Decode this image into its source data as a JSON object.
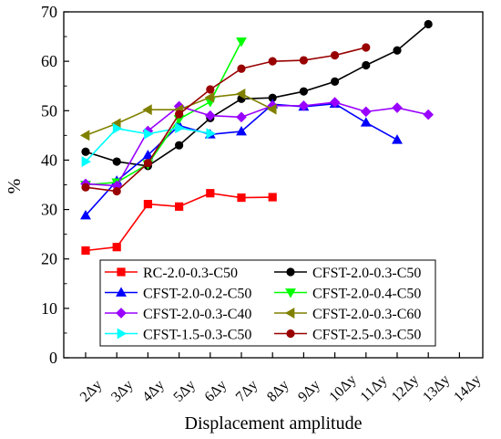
{
  "chart_data": {
    "type": "line",
    "title": "",
    "xlabel": "Displacement amplitude",
    "ylabel": "%",
    "categories": [
      "2Δy",
      "3Δy",
      "4Δy",
      "5Δy",
      "6Δy",
      "7Δy",
      "8Δy",
      "9Δy",
      "10Δy",
      "11Δy",
      "12Δy",
      "13Δy",
      "14Δy"
    ],
    "yticks": [
      "0",
      "10",
      "20",
      "30",
      "40",
      "50",
      "60",
      "70"
    ],
    "ylim": [
      0,
      70
    ],
    "grid": false,
    "legend": "bottom-center",
    "series": [
      {
        "name": "RC-2.0-0.3-C50",
        "color": "#ff0000",
        "marker": "square",
        "values": [
          21.7,
          22.4,
          31.1,
          30.6,
          33.3,
          32.4,
          32.5,
          null,
          null,
          null,
          null,
          null,
          null
        ]
      },
      {
        "name": "CFST-2.0-0.3-C50",
        "color": "#000000",
        "marker": "circle",
        "values": [
          41.7,
          39.7,
          38.8,
          43.0,
          48.5,
          52.4,
          52.6,
          53.9,
          55.9,
          59.2,
          62.2,
          67.5,
          null
        ]
      },
      {
        "name": "CFST-2.0-0.2-C50",
        "color": "#0000ff",
        "marker": "triangle-up",
        "values": [
          28.8,
          35.8,
          41.0,
          47.0,
          45.2,
          45.8,
          51.3,
          50.8,
          51.4,
          47.6,
          44.1,
          null,
          null
        ]
      },
      {
        "name": "CFST-2.0-0.4-C50",
        "color": "#00ff00",
        "marker": "triangle-down",
        "values": [
          35.0,
          35.5,
          39.2,
          48.3,
          51.8,
          64.0,
          null,
          null,
          null,
          null,
          null,
          null,
          null
        ]
      },
      {
        "name": "CFST-2.0-0.3-C40",
        "color": "#9900ff",
        "marker": "diamond",
        "values": [
          35.2,
          34.8,
          45.9,
          50.9,
          49.0,
          48.7,
          51.0,
          51.0,
          51.7,
          49.8,
          50.6,
          49.2,
          null
        ]
      },
      {
        "name": "CFST-2.0-0.3-C60",
        "color": "#808000",
        "marker": "triangle-left",
        "values": [
          45.0,
          47.4,
          50.2,
          50.2,
          52.7,
          53.4,
          50.3,
          null,
          null,
          null,
          null,
          null,
          null
        ]
      },
      {
        "name": "CFST-1.5-0.3-C50",
        "color": "#00ffff",
        "marker": "triangle-right",
        "values": [
          39.7,
          46.4,
          45.3,
          46.5,
          45.4,
          null,
          null,
          null,
          null,
          null,
          null,
          null,
          null
        ]
      },
      {
        "name": "CFST-2.5-0.3-C50",
        "color": "#990000",
        "marker": "circle",
        "values": [
          34.5,
          33.7,
          39.4,
          49.3,
          54.3,
          58.5,
          60.0,
          60.2,
          61.2,
          62.8,
          null,
          null,
          null
        ]
      }
    ]
  }
}
